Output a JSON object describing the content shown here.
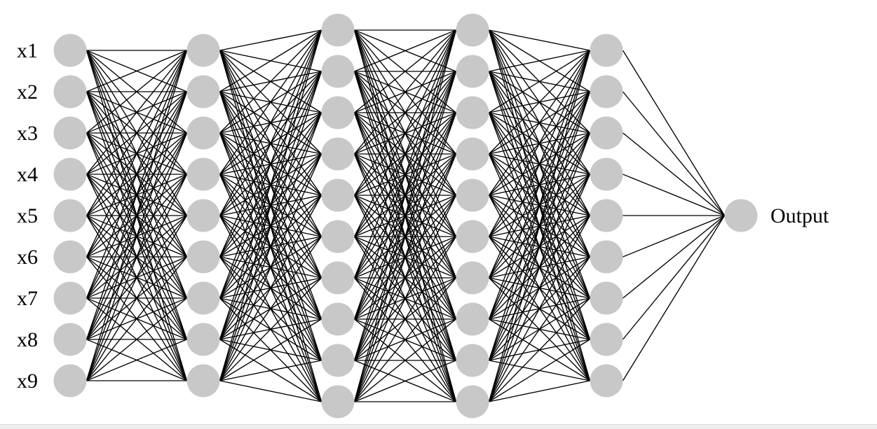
{
  "network": {
    "input_labels": [
      "x1",
      "x2",
      "x3",
      "x4",
      "x5",
      "x6",
      "x7",
      "x8",
      "x9"
    ],
    "output_label": "Output",
    "layer_sizes": [
      9,
      9,
      10,
      10,
      9,
      1
    ],
    "node_color": "#c8c8c8",
    "edge_color": "#000000"
  }
}
